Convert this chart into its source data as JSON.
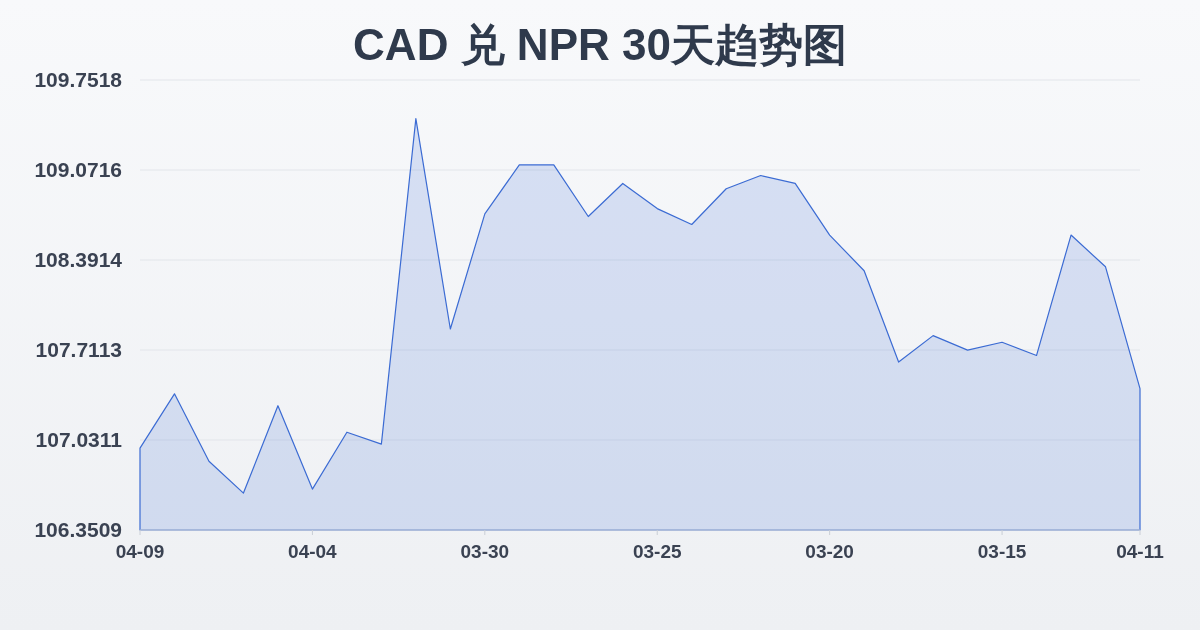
{
  "chart_data": {
    "type": "area",
    "title": "CAD 兑 NPR 30天趋势图",
    "categories": [
      "04-09",
      null,
      null,
      null,
      null,
      "04-04",
      null,
      null,
      null,
      null,
      "03-30",
      null,
      null,
      null,
      null,
      "03-25",
      null,
      null,
      null,
      null,
      "03-20",
      null,
      null,
      null,
      null,
      "03-15",
      null,
      null,
      null,
      "04-11"
    ],
    "values": [
      106.97,
      107.38,
      106.87,
      106.63,
      107.29,
      106.66,
      107.09,
      107.0,
      109.46,
      107.87,
      108.74,
      109.11,
      109.11,
      108.72,
      108.97,
      108.78,
      108.66,
      108.93,
      109.03,
      108.97,
      108.58,
      108.31,
      107.62,
      107.82,
      107.71,
      107.77,
      107.67,
      108.58,
      108.34,
      107.42
    ],
    "color": "#3b6bd3",
    "ylim": [
      106.3509,
      109.7518
    ],
    "yticks": [
      106.3509,
      107.0311,
      107.7113,
      108.3914,
      109.0716,
      109.7518
    ],
    "grid": "y"
  }
}
